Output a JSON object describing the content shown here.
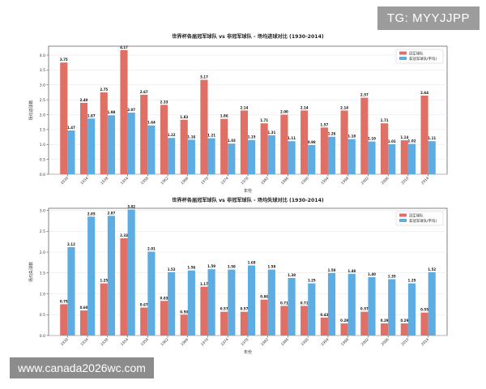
{
  "watermark_top": "TG: MYYJJPP",
  "watermark_bottom": "www.canada2026wc.com",
  "colors": {
    "champion": "#e07065",
    "non_champion": "#5dade2"
  },
  "chart_data": [
    {
      "type": "bar",
      "title": "世界杯各届冠军球队 vs 非冠军球队 - 场均进球对比 (1930-2014)",
      "xlabel": "年份",
      "ylabel": "场均进球数",
      "ylim": [
        0,
        4.3
      ],
      "yticks": [
        "0.0",
        "0.5",
        "1.0",
        "1.5",
        "2.0",
        "2.5",
        "3.0",
        "3.5",
        "4.0"
      ],
      "legend_position": "top-right",
      "categories": [
        "1930",
        "1934",
        "1938",
        "1954",
        "1958",
        "1962",
        "1966",
        "1970",
        "1974",
        "1978",
        "1982",
        "1986",
        "1990",
        "1994",
        "1998",
        "2002",
        "2006",
        "2010",
        "2014"
      ],
      "series": [
        {
          "name": "冠军球队",
          "values": [
            3.75,
            2.4,
            2.75,
            4.17,
            2.67,
            2.33,
            1.83,
            3.17,
            1.86,
            2.14,
            1.71,
            2.0,
            2.14,
            1.57,
            2.14,
            2.57,
            1.71,
            1.14,
            2.64
          ]
        },
        {
          "name": "非冠军球队(平均)",
          "values": [
            1.47,
            1.87,
            1.98,
            2.07,
            1.64,
            1.22,
            1.16,
            1.21,
            1.03,
            1.15,
            1.31,
            1.11,
            0.98,
            1.26,
            1.18,
            1.1,
            1.01,
            1.02,
            1.11
          ]
        }
      ]
    },
    {
      "type": "bar",
      "title": "世界杯各届冠军球队 vs 非冠军球队 - 场均失球对比 (1930-2014)",
      "xlabel": "年份",
      "ylabel": "场均失球数",
      "ylim": [
        0,
        3.05
      ],
      "yticks": [
        "0.0",
        "0.5",
        "1.0",
        "1.5",
        "2.0",
        "2.5",
        "3.0"
      ],
      "legend_position": "top-right",
      "categories": [
        "1930",
        "1934",
        "1938",
        "1954",
        "1958",
        "1962",
        "1966",
        "1970",
        "1974",
        "1978",
        "1982",
        "1986",
        "1990",
        "1994",
        "1998",
        "2002",
        "2006",
        "2010",
        "2014"
      ],
      "series": [
        {
          "name": "冠军球队",
          "values": [
            0.75,
            0.6,
            1.25,
            2.33,
            0.67,
            0.83,
            0.5,
            1.17,
            0.57,
            0.57,
            0.86,
            0.71,
            0.71,
            0.43,
            0.29,
            0.57,
            0.29,
            0.29,
            0.55
          ]
        },
        {
          "name": "非冠军球队(平均)",
          "values": [
            2.12,
            2.85,
            2.87,
            3.02,
            2.01,
            1.52,
            1.56,
            1.59,
            1.58,
            1.68,
            1.58,
            1.38,
            1.25,
            1.5,
            1.48,
            1.4,
            1.35,
            1.25,
            1.52
          ]
        }
      ]
    }
  ]
}
